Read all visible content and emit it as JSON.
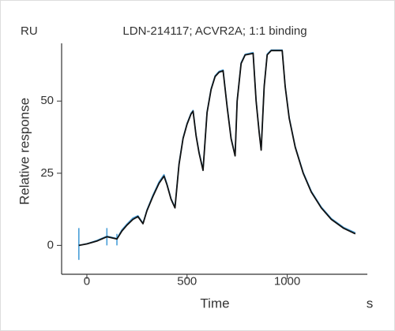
{
  "chart_data": {
    "type": "line",
    "title": "LDN-214117; ACVR2A; 1:1 binding",
    "unit_label": "RU",
    "y_label": "Relative response",
    "x_label": "Time",
    "x_unit": "s",
    "xlim": [
      -126,
      1400
    ],
    "ylim": [
      -10,
      70
    ],
    "xticks": [
      0,
      500,
      1000
    ],
    "yticks": [
      0,
      25,
      50
    ],
    "series": [
      {
        "color": "#4a9fd8",
        "x": [
          -40,
          -40,
          -40,
          100,
          100,
          100,
          150,
          150
        ],
        "values": [
          -5,
          6,
          null,
          0,
          6,
          null,
          0,
          4
        ]
      },
      {
        "color": "#4a9fd8",
        "x": [
          -40,
          0,
          50,
          100,
          150,
          175,
          200,
          230,
          255,
          280,
          300,
          330,
          360,
          385,
          400,
          420,
          440,
          460,
          480,
          500,
          520,
          530,
          545,
          560,
          580,
          600,
          620,
          640,
          660,
          680,
          700,
          720,
          740,
          750,
          770,
          790,
          830,
          845,
          860,
          870,
          885,
          900,
          920,
          975,
          990,
          1010,
          1040,
          1080,
          1120,
          1170,
          1220,
          1280,
          1340
        ],
        "values": [
          0,
          0.6,
          1.7,
          3.2,
          2.4,
          5.4,
          7.4,
          9.5,
          10.3,
          7.7,
          12.3,
          17.4,
          22,
          24.5,
          21.3,
          16.2,
          13.3,
          28.4,
          37.3,
          42.3,
          45.8,
          46.8,
          38.2,
          32.3,
          26.3,
          46.3,
          54.3,
          58.8,
          60.3,
          60.8,
          48.3,
          37.3,
          31.2,
          50.3,
          63.3,
          66.2,
          66.8,
          50.2,
          39.2,
          33.2,
          55.3,
          66.3,
          67.7,
          67.7,
          55.2,
          44.3,
          34.3,
          25.3,
          18.8,
          13.3,
          9.3,
          6.3,
          4.4
        ]
      },
      {
        "color": "#111111",
        "x": [
          -40,
          0,
          50,
          100,
          150,
          175,
          200,
          230,
          255,
          280,
          300,
          330,
          360,
          385,
          400,
          420,
          440,
          460,
          480,
          500,
          520,
          530,
          545,
          560,
          580,
          600,
          620,
          640,
          660,
          680,
          700,
          720,
          740,
          750,
          770,
          790,
          830,
          845,
          860,
          870,
          885,
          900,
          920,
          975,
          990,
          1010,
          1040,
          1080,
          1120,
          1170,
          1220,
          1280,
          1340
        ],
        "values": [
          0,
          0.5,
          1.5,
          3,
          2.2,
          5,
          7,
          9,
          10,
          7.5,
          12,
          17,
          21.5,
          24,
          21,
          16,
          13,
          28,
          37,
          42,
          45.5,
          46.5,
          38,
          32,
          26,
          46,
          54,
          58.5,
          60,
          60.5,
          48,
          37,
          31,
          50,
          63,
          66,
          66.5,
          50,
          39,
          33,
          55,
          66,
          67.5,
          67.5,
          55,
          44,
          34,
          25,
          18.5,
          13,
          9,
          6,
          4
        ]
      }
    ]
  }
}
